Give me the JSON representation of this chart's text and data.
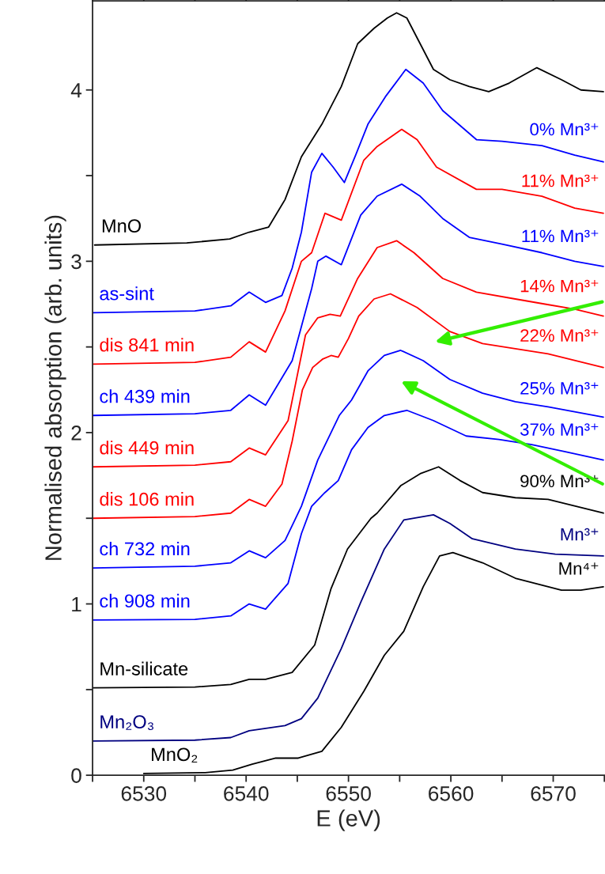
{
  "chart_data": {
    "type": "line",
    "xlabel": "E (eV)",
    "ylabel": "Normalised absorption (arb. units)",
    "xlim": [
      6525,
      6575
    ],
    "ylim": [
      0,
      4.52
    ],
    "xticks": [
      {
        "value": 6525,
        "label": null
      },
      6530,
      {
        "value": 6535,
        "label": null
      },
      6540,
      {
        "value": 6545,
        "label": null
      },
      6550,
      {
        "value": 6555,
        "label": null
      },
      6560,
      {
        "value": 6565,
        "label": null
      },
      6570,
      {
        "value": 6575,
        "label": null
      }
    ],
    "yticks": [
      0,
      {
        "value": 0.5,
        "label": null
      },
      1,
      {
        "value": 1.5,
        "label": null
      },
      2,
      {
        "value": 2.5,
        "label": null
      },
      3,
      {
        "value": 3.5,
        "label": null
      },
      4
    ],
    "grid": false,
    "legend": false,
    "marker": "none",
    "line_style": "solid",
    "series": [
      {
        "name": "MnO",
        "color": "#000000",
        "x": [
          6525.2,
          6534.2,
          6538.4,
          6540.3,
          6542.2,
          6543.8,
          6545.4,
          6547.4,
          6549.3,
          6550.9,
          6552.5,
          6553.8,
          6554.7,
          6555.7,
          6557.0,
          6558.3,
          6559.9,
          6561.8,
          6563.7,
          6565.7,
          6568.4,
          6570.8,
          6572.7,
          6574.9
        ],
        "values": [
          3.095,
          3.107,
          3.13,
          3.17,
          3.2,
          3.36,
          3.61,
          3.8,
          4.02,
          4.27,
          4.36,
          4.42,
          4.45,
          4.42,
          4.27,
          4.12,
          4.06,
          4.02,
          3.99,
          4.04,
          4.13,
          4.06,
          4.0,
          3.99
        ]
      },
      {
        "name": "as-sint",
        "color": "#0000ff",
        "x": [
          6525,
          6535,
          6538.5,
          6540.3,
          6541.9,
          6543.5,
          6544.5,
          6545.4,
          6546.4,
          6547.4,
          6548.5,
          6549.6,
          6550.7,
          6551.9,
          6553.6,
          6555.6,
          6557.3,
          6559.2,
          6562.5,
          6565,
          6568.9,
          6572.1,
          6574.9
        ],
        "values": [
          2.7,
          2.71,
          2.74,
          2.82,
          2.76,
          2.8,
          2.96,
          3.17,
          3.52,
          3.63,
          3.55,
          3.46,
          3.62,
          3.8,
          3.96,
          4.12,
          4.04,
          3.88,
          3.71,
          3.7,
          3.675,
          3.62,
          3.58
        ]
      },
      {
        "name": "dis 841 min",
        "color": "#ff0000",
        "x": [
          6525,
          6535,
          6538.5,
          6540.3,
          6541.9,
          6543.8,
          6545.4,
          6546.4,
          6547.7,
          6549.3,
          6551.5,
          6552.8,
          6555.2,
          6556.7,
          6558.6,
          6562.5,
          6565,
          6568.9,
          6572.1,
          6574.9
        ],
        "values": [
          2.4,
          2.41,
          2.44,
          2.53,
          2.47,
          2.71,
          3.0,
          3.05,
          3.28,
          3.24,
          3.59,
          3.67,
          3.77,
          3.71,
          3.55,
          3.42,
          3.42,
          3.38,
          3.31,
          3.28
        ]
      },
      {
        "name": "ch 439 min",
        "color": "#0000ff",
        "x": [
          6525,
          6535,
          6538.5,
          6540.3,
          6541.9,
          6544.5,
          6546.4,
          6547.0,
          6547.8,
          6549.3,
          6551.2,
          6552.8,
          6555.2,
          6557.0,
          6559.2,
          6561.8,
          6565.0,
          6568.9,
          6572.1,
          6574.9
        ],
        "values": [
          2.1,
          2.11,
          2.13,
          2.22,
          2.16,
          2.42,
          2.84,
          3.0,
          3.03,
          2.98,
          3.27,
          3.38,
          3.45,
          3.38,
          3.25,
          3.14,
          3.1,
          3.05,
          3.0,
          2.97
        ]
      },
      {
        "name": "dis 449 min",
        "color": "#ff0000",
        "x": [
          6525,
          6535,
          6538.5,
          6540.3,
          6541.9,
          6544.1,
          6545.8,
          6547.0,
          6548.2,
          6549.2,
          6550.9,
          6552.8,
          6554.7,
          6556.4,
          6559.2,
          6562.5,
          6566.3,
          6569.2,
          6572.1,
          6574.9
        ],
        "values": [
          1.8,
          1.81,
          1.83,
          1.91,
          1.87,
          2.07,
          2.57,
          2.67,
          2.69,
          2.68,
          2.9,
          3.08,
          3.12,
          3.05,
          2.9,
          2.82,
          2.78,
          2.75,
          2.72,
          2.68
        ]
      },
      {
        "name": "dis 106 min",
        "color": "#ff0000",
        "x": [
          6525,
          6535,
          6538.5,
          6540.3,
          6541.9,
          6543.5,
          6544.5,
          6545.5,
          6546.5,
          6547.5,
          6548.3,
          6549.0,
          6550,
          6551,
          6552.5,
          6554.1,
          6556.7,
          6559.9,
          6563.1,
          6566.3,
          6569.5,
          6574.9
        ],
        "values": [
          1.5,
          1.51,
          1.53,
          1.61,
          1.57,
          1.7,
          1.95,
          2.25,
          2.38,
          2.43,
          2.45,
          2.44,
          2.55,
          2.68,
          2.78,
          2.81,
          2.73,
          2.59,
          2.52,
          2.49,
          2.46,
          2.38
        ]
      },
      {
        "name": "ch 732 min",
        "color": "#0000ff",
        "x": [
          6525,
          6535,
          6538.5,
          6540.3,
          6541.9,
          6543.8,
          6545.4,
          6547.0,
          6549.1,
          6550.3,
          6551.9,
          6553.5,
          6555.1,
          6557.3,
          6559.9,
          6563.1,
          6566.3,
          6569.5,
          6574.9
        ],
        "values": [
          1.21,
          1.22,
          1.24,
          1.31,
          1.27,
          1.37,
          1.57,
          1.84,
          2.1,
          2.19,
          2.36,
          2.45,
          2.48,
          2.42,
          2.31,
          2.23,
          2.18,
          2.15,
          2.09
        ]
      },
      {
        "name": "ch 908 min",
        "color": "#0000ff",
        "x": [
          6525,
          6535,
          6538.5,
          6540.3,
          6541.9,
          6544.1,
          6545.4,
          6546.4,
          6547.7,
          6549.0,
          6550.3,
          6551.9,
          6553.5,
          6555.7,
          6558.3,
          6561.5,
          6564.7,
          6567.9,
          6571.1,
          6574.9
        ],
        "values": [
          0.906,
          0.91,
          0.93,
          1.0,
          0.97,
          1.12,
          1.41,
          1.57,
          1.65,
          1.72,
          1.9,
          2.03,
          2.1,
          2.13,
          2.07,
          1.98,
          1.96,
          1.93,
          1.89,
          1.84
        ]
      },
      {
        "name": "Mn-silicate",
        "color": "#000000",
        "x": [
          6525,
          6535,
          6538.5,
          6540.3,
          6541.9,
          6544.5,
          6546.7,
          6548.3,
          6549.9,
          6552.2,
          6552.8,
          6555.1,
          6557.0,
          6558.8,
          6560.9,
          6563.1,
          6566.3,
          6569.5,
          6574.9
        ],
        "values": [
          0.51,
          0.515,
          0.53,
          0.56,
          0.56,
          0.6,
          0.76,
          1.09,
          1.32,
          1.5,
          1.53,
          1.69,
          1.76,
          1.8,
          1.72,
          1.65,
          1.62,
          1.61,
          1.53
        ]
      },
      {
        "name": "Mn₂O₃",
        "color": "#000080",
        "x": [
          6525,
          6535,
          6538.5,
          6540.3,
          6543.8,
          6545.4,
          6547.0,
          6549.3,
          6551.2,
          6553.5,
          6555.4,
          6558.3,
          6559.9,
          6562.1,
          6566.3,
          6570.2,
          6574.9
        ],
        "values": [
          0.2,
          0.205,
          0.22,
          0.26,
          0.29,
          0.33,
          0.45,
          0.74,
          1.01,
          1.32,
          1.49,
          1.52,
          1.47,
          1.38,
          1.32,
          1.29,
          1.28
        ]
      },
      {
        "name": "MnO₂",
        "color": "#000000",
        "x": [
          6530,
          6536,
          6538.7,
          6540.6,
          6542.9,
          6545.1,
          6547.4,
          6549.3,
          6551.5,
          6553.5,
          6555.4,
          6557.3,
          6558.9,
          6560.2,
          6563.1,
          6566.3,
          6570.8,
          6572.7,
          6574.9
        ],
        "values": [
          0.01,
          0.015,
          0.03,
          0.065,
          0.1,
          0.1,
          0.14,
          0.28,
          0.49,
          0.7,
          0.84,
          1.1,
          1.28,
          1.3,
          1.24,
          1.15,
          1.08,
          1.08,
          1.1
        ]
      }
    ],
    "annotations": [
      "0% Mn³⁺",
      "11% Mn³⁺",
      "11% Mn³⁺",
      "14% Mn³⁺",
      "22% Mn³⁺",
      "25% Mn³⁺",
      "37% Mn³⁺",
      "90% Mn³⁺",
      "Mn³⁺",
      "Mn⁴⁺"
    ]
  }
}
